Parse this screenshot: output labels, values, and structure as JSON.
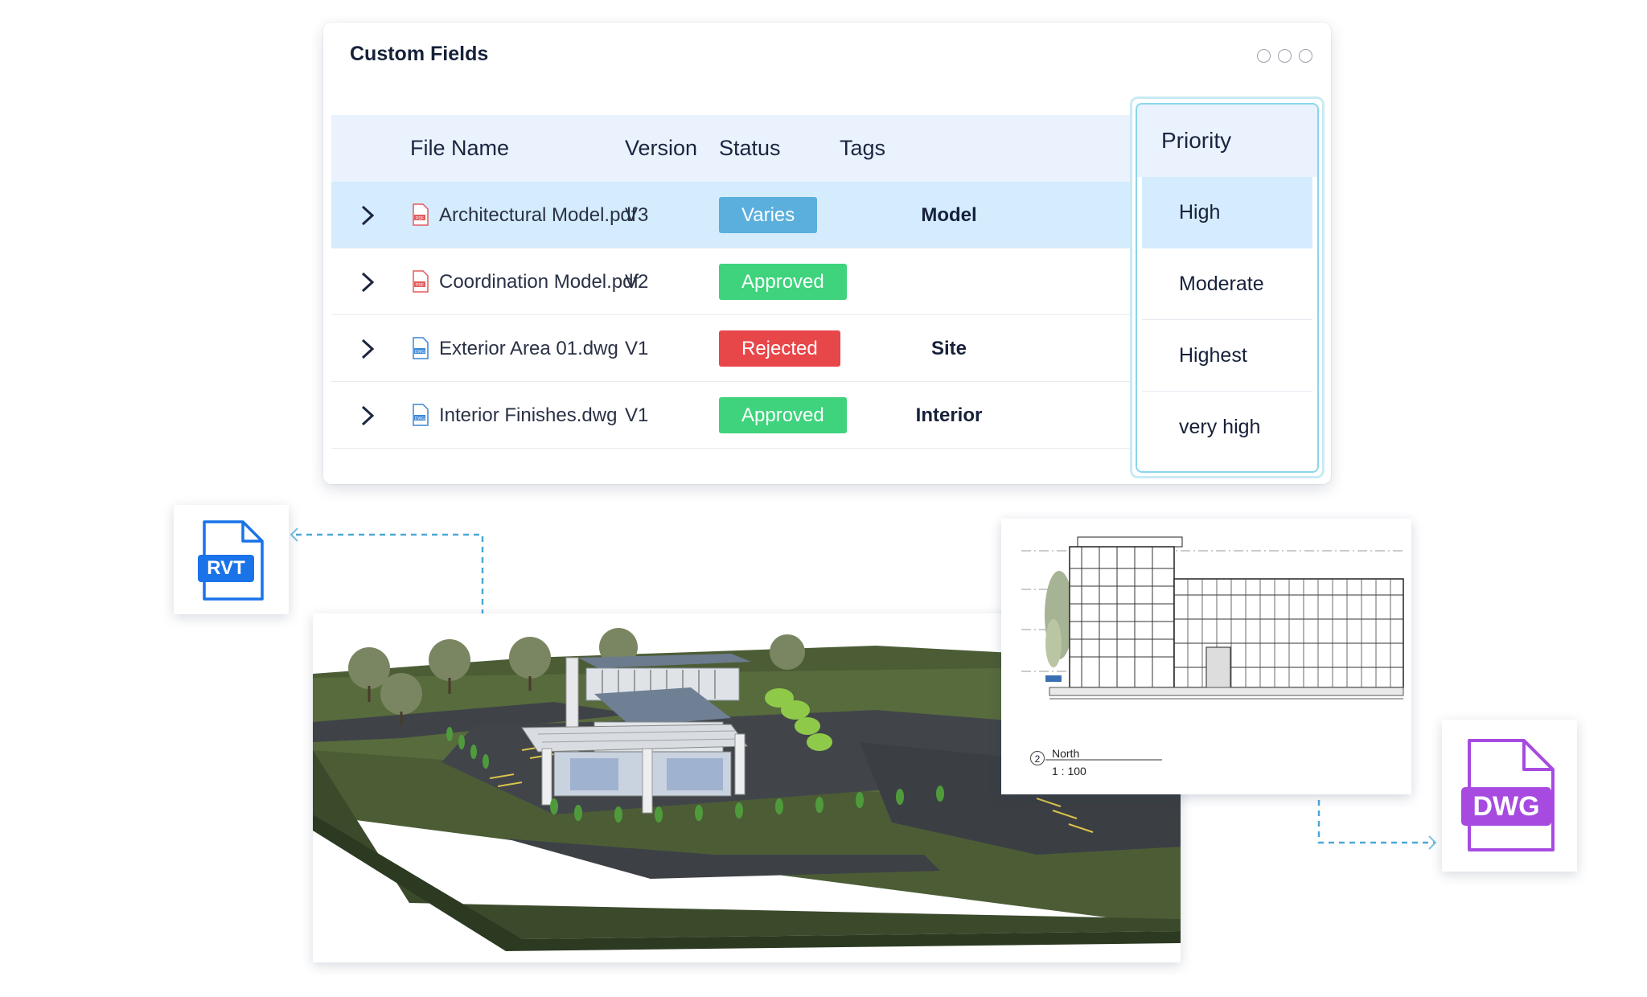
{
  "panel": {
    "title": "Custom Fields",
    "columns": {
      "file_name": "File Name",
      "version": "Version",
      "status": "Status",
      "tags": "Tags"
    },
    "rows": [
      {
        "file_name": "Architectural Model.pdf",
        "file_type_icon": "pdf-file-icon",
        "version": "V3",
        "status": "Varies",
        "status_color": "#5aafdd",
        "tag": "Model",
        "selected": true
      },
      {
        "file_name": "Coordination Model.pdf",
        "file_type_icon": "pdf-file-icon",
        "version": "V2",
        "status": "Approved",
        "status_color": "#3ed37c",
        "tag": "",
        "selected": false
      },
      {
        "file_name": "Exterior Area 01.dwg",
        "file_type_icon": "dwg-file-icon",
        "version": "V1",
        "status": "Rejected",
        "status_color": "#e8474a",
        "tag": "Site",
        "selected": false
      },
      {
        "file_name": "Interior Finishes.dwg",
        "file_type_icon": "dwg-file-icon",
        "version": "V1",
        "status": "Approved",
        "status_color": "#3ed37c",
        "tag": "Interior",
        "selected": false
      }
    ]
  },
  "priority": {
    "label": "Priority",
    "options": [
      "High",
      "Moderate",
      "Highest",
      "very high"
    ],
    "selected": "High"
  },
  "rvt_badge": {
    "label": "RVT",
    "color": "#1a73e8"
  },
  "dwg_badge": {
    "label": "DWG",
    "color": "#a74be0"
  },
  "elevation": {
    "view_number": "2",
    "view_name": "North",
    "scale": "1 : 100"
  },
  "colors": {
    "accent": "#5aafdd",
    "selected_row": "#d4ecfd",
    "header_bg": "#eaf2fd"
  }
}
